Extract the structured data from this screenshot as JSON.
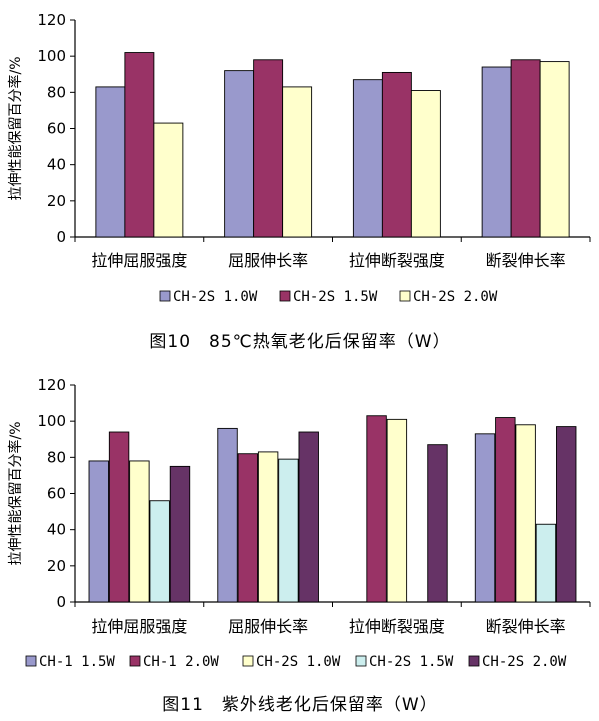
{
  "colors": {
    "blue": "#9999cc",
    "maroon": "#993366",
    "cream": "#ffffcc",
    "lightcyan": "#cceeee",
    "plum": "#663366"
  },
  "chart_data": [
    {
      "type": "bar",
      "ylabel": "拉伸性能保留百分率/%",
      "ylim": [
        0,
        120
      ],
      "yticks": [
        0,
        20,
        40,
        60,
        80,
        100,
        120
      ],
      "categories": [
        "拉伸屈服强度",
        "屈服伸长率",
        "拉伸断裂强度",
        "断裂伸长率"
      ],
      "series": [
        {
          "name": "CH-2S 1.0W",
          "color": "#9999cc",
          "values": [
            83,
            92,
            87,
            94
          ]
        },
        {
          "name": "CH-2S 1.5W",
          "color": "#993366",
          "values": [
            102,
            98,
            91,
            98
          ]
        },
        {
          "name": "CH-2S 2.0W",
          "color": "#ffffcc",
          "values": [
            63,
            83,
            81,
            97
          ]
        }
      ],
      "legend_position": "bottom",
      "caption": "图10　85℃热氧老化后保留率（W）"
    },
    {
      "type": "bar",
      "ylabel": "拉伸性能保留百分率/%",
      "ylim": [
        0,
        120
      ],
      "yticks": [
        0,
        20,
        40,
        60,
        80,
        100,
        120
      ],
      "categories": [
        "拉伸屈服强度",
        "屈服伸长率",
        "拉伸断裂强度",
        "断裂伸长率"
      ],
      "series": [
        {
          "name": "CH-1 1.5W",
          "color": "#9999cc",
          "values": [
            78,
            96,
            null,
            93
          ]
        },
        {
          "name": "CH-1 2.0W",
          "color": "#993366",
          "values": [
            94,
            82,
            103,
            102
          ]
        },
        {
          "name": "CH-2S 1.0W",
          "color": "#ffffcc",
          "values": [
            78,
            83,
            101,
            98
          ]
        },
        {
          "name": "CH-2S 1.5W",
          "color": "#cceeee",
          "values": [
            56,
            79,
            null,
            43
          ]
        },
        {
          "name": "CH-2S 2.0W",
          "color": "#663366",
          "values": [
            75,
            94,
            87,
            97
          ]
        }
      ],
      "legend_position": "bottom",
      "caption": "图11　紫外线老化后保留率（W）"
    }
  ]
}
